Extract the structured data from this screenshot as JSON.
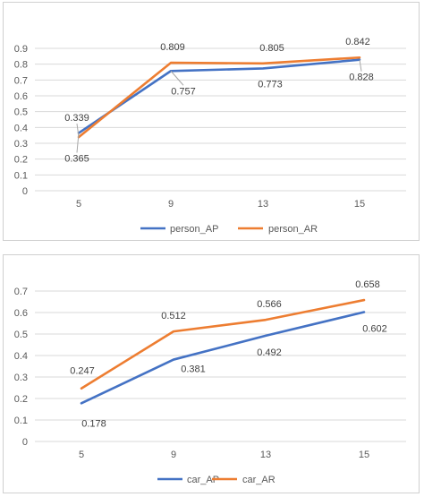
{
  "chart_data": [
    {
      "type": "line",
      "categories": [
        "5",
        "9",
        "13",
        "15"
      ],
      "ylim": [
        0,
        0.9
      ],
      "yticks": [
        "0",
        "0.1",
        "0.2",
        "0.3",
        "0.4",
        "0.5",
        "0.6",
        "0.7",
        "0.8",
        "0.9"
      ],
      "grid": true,
      "legend": "bottom",
      "series": [
        {
          "name": "person_AP",
          "color": "#4472C4",
          "values": [
            0.365,
            0.757,
            0.773,
            0.828
          ],
          "labels": [
            "0.365",
            "0.757",
            "0.773",
            "0.828"
          ]
        },
        {
          "name": "person_AR",
          "color": "#ED7D31",
          "values": [
            0.339,
            0.809,
            0.805,
            0.842
          ],
          "labels": [
            "0.339",
            "0.809",
            "0.805",
            "0.842"
          ]
        }
      ]
    },
    {
      "type": "line",
      "categories": [
        "5",
        "9",
        "13",
        "15"
      ],
      "ylim": [
        0,
        0.7
      ],
      "yticks": [
        "0",
        "0.1",
        "0.2",
        "0.3",
        "0.4",
        "0.5",
        "0.6",
        "0.7"
      ],
      "grid": true,
      "legend": "bottom",
      "series": [
        {
          "name": "car_AP",
          "color": "#4472C4",
          "values": [
            0.178,
            0.381,
            0.492,
            0.602
          ],
          "labels": [
            "0.178",
            "0.381",
            "0.492",
            "0.602"
          ]
        },
        {
          "name": "car_AR",
          "color": "#ED7D31",
          "values": [
            0.247,
            0.512,
            0.566,
            0.658
          ],
          "labels": [
            "0.247",
            "0.512",
            "0.566",
            "0.658"
          ]
        }
      ]
    }
  ]
}
